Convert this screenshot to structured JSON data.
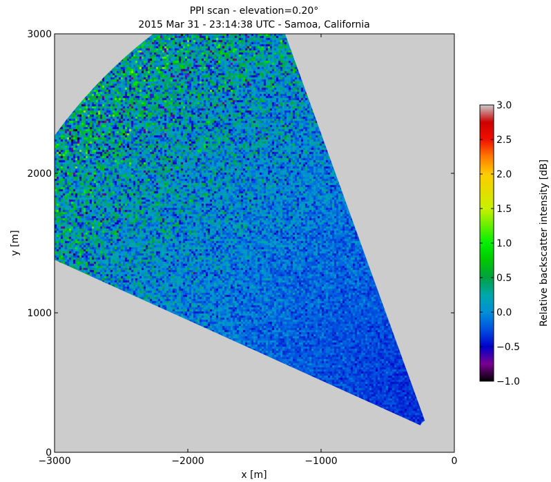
{
  "chart_data": {
    "type": "heatmap",
    "subtype": "ppi-radar-scan",
    "title_line1": "PPI scan - elevation=0.20°",
    "title_line2": "2015 Mar 31 - 23:14:38 UTC - Samoa, California",
    "xlabel": "x [m]",
    "ylabel": "y [m]",
    "xlim": [
      -3000,
      0
    ],
    "ylim": [
      0,
      3000
    ],
    "xticks": [
      -3000,
      -2000,
      -1000,
      0
    ],
    "xtick_labels": [
      "−3000",
      "−2000",
      "−1000",
      "0"
    ],
    "yticks": [
      0,
      1000,
      2000,
      3000
    ],
    "ytick_labels": [
      "0",
      "1000",
      "2000",
      "3000"
    ],
    "grid": false,
    "background_color": "#cccccc",
    "scan_sector": {
      "vertex": [
        -200,
        170
      ],
      "range_min_m": 60,
      "range_max_m": 3500,
      "azimuth_left_edge": [
        -3000,
        1380
      ],
      "azimuth_right_edge": [
        -1270,
        3000
      ]
    },
    "colorbar": {
      "label": "Relative backscatter intensity [dB]",
      "min": -1.0,
      "max": 3.0,
      "ticks": [
        3.0,
        2.5,
        2.0,
        1.5,
        1.0,
        0.5,
        0.0,
        -0.5,
        -1.0
      ],
      "tick_labels": [
        "3.0",
        "2.5",
        "2.0",
        "1.5",
        "1.0",
        "0.5",
        "0.0",
        "−0.5",
        "−1.0"
      ],
      "colormap": [
        [
          -1.0,
          "#000000"
        ],
        [
          -0.75,
          "#7a0090"
        ],
        [
          -0.5,
          "#0000c8"
        ],
        [
          -0.25,
          "#0050e0"
        ],
        [
          0.0,
          "#0090d8"
        ],
        [
          0.25,
          "#00a8a8"
        ],
        [
          0.5,
          "#00a040"
        ],
        [
          0.75,
          "#00c800"
        ],
        [
          1.0,
          "#00f000"
        ],
        [
          1.5,
          "#c8f000"
        ],
        [
          2.0,
          "#ffcc00"
        ],
        [
          2.25,
          "#ff7a00"
        ],
        [
          2.5,
          "#f01000"
        ],
        [
          2.75,
          "#cc0000"
        ],
        [
          3.0,
          "#cccccc"
        ]
      ]
    }
  }
}
